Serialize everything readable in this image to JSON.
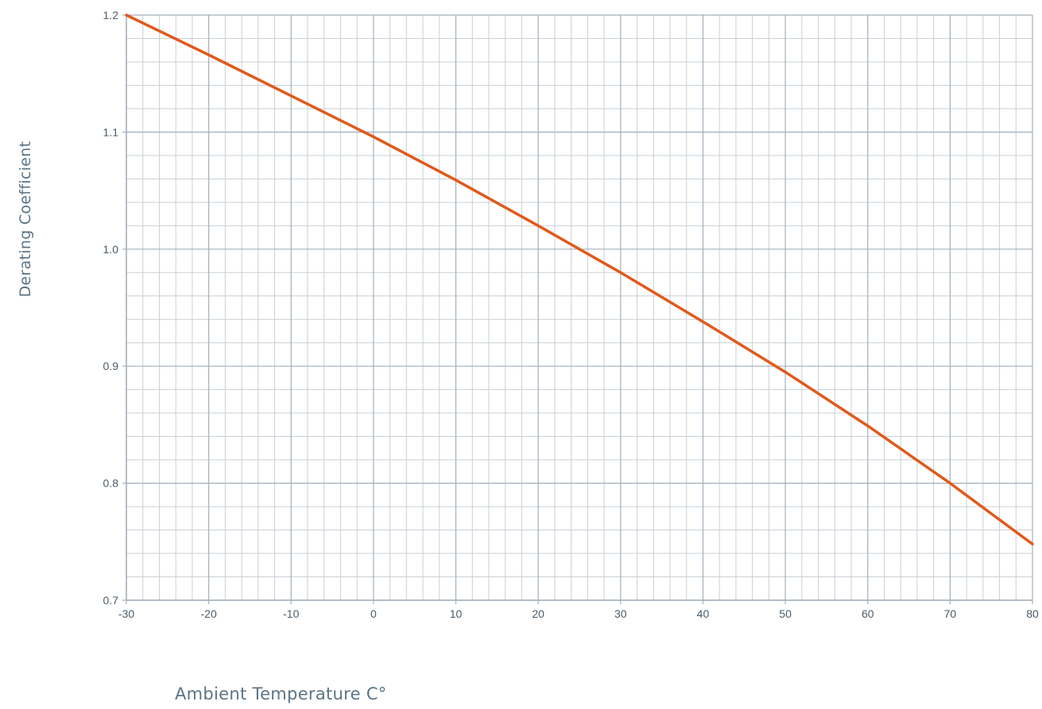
{
  "chart_data": {
    "type": "line",
    "title": "",
    "xlabel": "Ambient Temperature C°",
    "ylabel": "Derating Coefficient",
    "xlim": [
      -30,
      80
    ],
    "ylim": [
      0.7,
      1.2
    ],
    "x_ticks": [
      "-30",
      "-20",
      "-10",
      "0",
      "10",
      "20",
      "30",
      "40",
      "50",
      "60",
      "70",
      "80"
    ],
    "y_ticks": [
      "0.7",
      "0.8",
      "0.9",
      "1.0",
      "1.1",
      "1.2"
    ],
    "grid": true,
    "x_minor_divisions": 5,
    "y_minor_divisions": 5,
    "legend": "none",
    "series": [
      {
        "x": [
          -30,
          -20,
          -10,
          0,
          10,
          20,
          30,
          40,
          50,
          60,
          70,
          80
        ],
        "y": [
          1.2,
          1.166,
          1.131,
          1.096,
          1.059,
          1.02,
          0.98,
          0.938,
          0.895,
          0.849,
          0.8,
          0.748
        ],
        "color": "#e05a1c"
      }
    ],
    "colors": {
      "major_grid": "#a3afba",
      "minor_grid": "#c9d0d6",
      "tick_text": "#4a5c6a",
      "axis_label": "#5b7484"
    }
  }
}
